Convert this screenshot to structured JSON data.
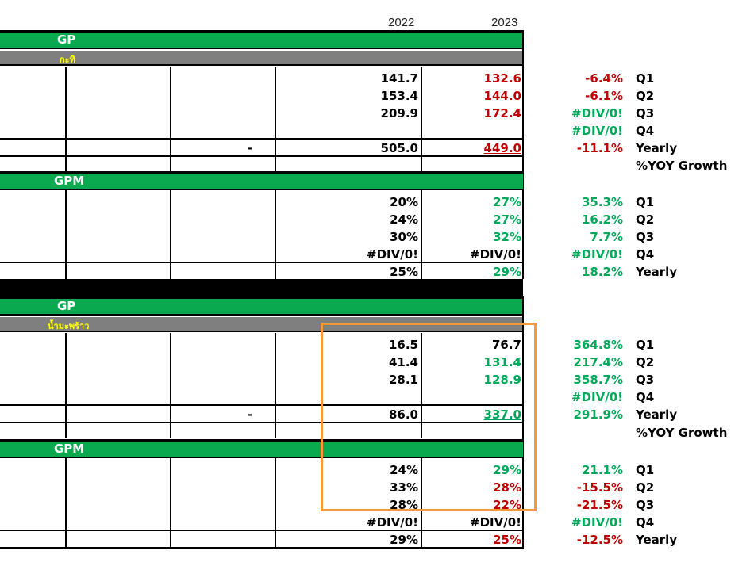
{
  "years": {
    "y1": "2022",
    "y2": "2023"
  },
  "blocks": [
    {
      "section_a": "GP",
      "product": "กะทิ",
      "gp_rows": [
        {
          "v22": "141.7",
          "v23": "132.6",
          "yoy": "-6.4%",
          "label": "Q1"
        },
        {
          "v22": "153.4",
          "v23": "144.0",
          "yoy": "-6.1%",
          "label": "Q2"
        },
        {
          "v22": "209.9",
          "v23": "172.4",
          "yoy": "#DIV/0!",
          "label": "Q3"
        },
        {
          "v22": "",
          "v23": "",
          "yoy": "#DIV/0!",
          "label": "Q4"
        }
      ],
      "gp_year": {
        "dash": "-",
        "v22": "505.0",
        "v23": "449.0",
        "yoy": "-11.1%",
        "label": "Yearly"
      },
      "growth_label": "%YOY Growth",
      "section_b": "GPM",
      "gpm_rows": [
        {
          "v22": "20%",
          "v23": "27%",
          "yoy": "35.3%",
          "label": "Q1"
        },
        {
          "v22": "24%",
          "v23": "27%",
          "yoy": "16.2%",
          "label": "Q2"
        },
        {
          "v22": "30%",
          "v23": "32%",
          "yoy": "7.7%",
          "label": "Q3"
        },
        {
          "v22": "#DIV/0!",
          "v23": "#DIV/0!",
          "yoy": "#DIV/0!",
          "label": "Q4"
        }
      ],
      "gpm_year": {
        "v22": "25%",
        "v23": "29%",
        "yoy": "18.2%",
        "label": "Yearly"
      }
    },
    {
      "section_a": "GP",
      "product": "น้ำมะพร้าว",
      "gp_rows": [
        {
          "v22": "16.5",
          "v23": "76.7",
          "yoy": "364.8%",
          "label": "Q1"
        },
        {
          "v22": "41.4",
          "v23": "131.4",
          "yoy": "217.4%",
          "label": "Q2"
        },
        {
          "v22": "28.1",
          "v23": "128.9",
          "yoy": "358.7%",
          "label": "Q3"
        },
        {
          "v22": "",
          "v23": "",
          "yoy": "#DIV/0!",
          "label": "Q4"
        }
      ],
      "gp_year": {
        "dash": "-",
        "v22": "86.0",
        "v23": "337.0",
        "yoy": "291.9%",
        "label": "Yearly"
      },
      "growth_label": "%YOY Growth",
      "section_b": "GPM",
      "gpm_rows": [
        {
          "v22": "24%",
          "v23": "29%",
          "yoy": "21.1%",
          "label": "Q1"
        },
        {
          "v22": "33%",
          "v23": "28%",
          "yoy": "-15.5%",
          "label": "Q2"
        },
        {
          "v22": "28%",
          "v23": "22%",
          "yoy": "-21.5%",
          "label": "Q3"
        },
        {
          "v22": "#DIV/0!",
          "v23": "#DIV/0!",
          "yoy": "#DIV/0!",
          "label": "Q4"
        }
      ],
      "gpm_year": {
        "v22": "29%",
        "v23": "25%",
        "yoy": "-12.5%",
        "label": "Yearly"
      }
    }
  ],
  "colors": {
    "green_header": "#0aa84f",
    "gray_header": "#7f7f7f",
    "positive": "#00a859",
    "negative": "#c00000",
    "highlight_box": "#f39a3c"
  }
}
